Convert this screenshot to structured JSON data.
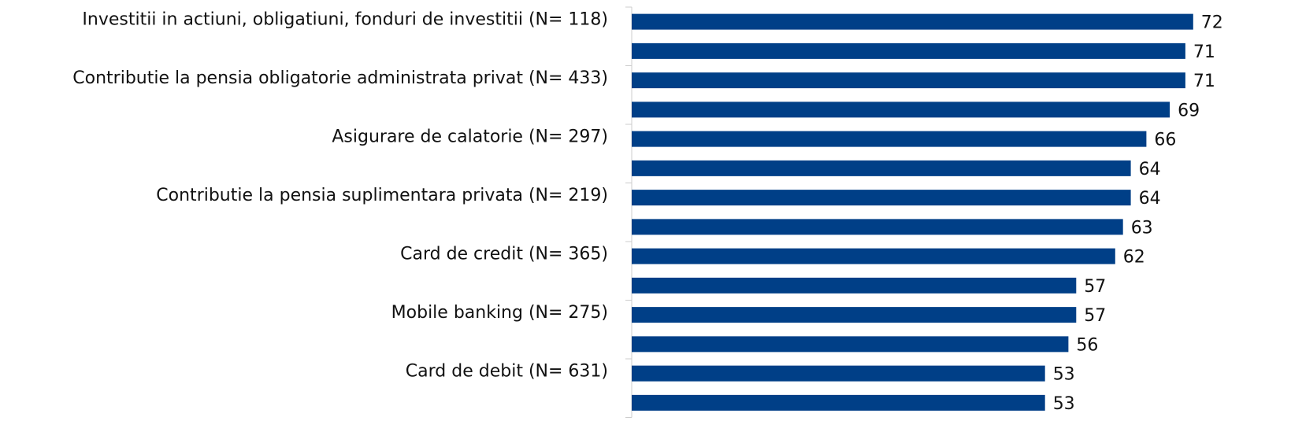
{
  "chart_data": {
    "type": "bar",
    "orientation": "horizontal",
    "categories": [
      "Investitii in actiuni, obligatiuni, fonduri de investitii (N= 118)",
      null,
      "Contributie la pensia obligatorie administrata privat (N= 433)",
      null,
      "Asigurare de calatorie (N= 297)",
      null,
      "Contributie la pensia suplimentara privata  (N= 219)",
      null,
      "Card de credit (N= 365)",
      null,
      "Mobile banking (N= 275)",
      null,
      "Card de debit (N= 631)",
      null
    ],
    "values": [
      72,
      71,
      71,
      69,
      66,
      64,
      64,
      63,
      62,
      57,
      57,
      56,
      53,
      53
    ],
    "color": "#003f87",
    "xlim": [
      0,
      80
    ]
  }
}
